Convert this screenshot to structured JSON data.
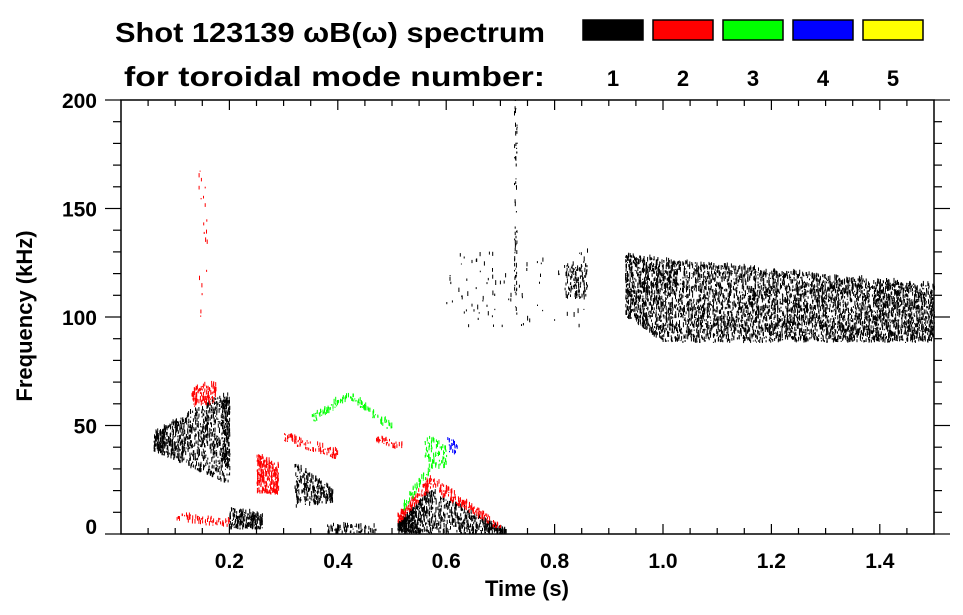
{
  "chart_data": {
    "type": "heatmap",
    "title": "Shot 123139 ωB(ω) spectrum",
    "subtitle": "for toroidal mode number:",
    "xlabel": "Time (s)",
    "ylabel": "Frequency (kHz)",
    "xlim": [
      0,
      1.5
    ],
    "ylim": [
      0,
      200
    ],
    "xticks": [
      0.2,
      0.4,
      0.6,
      0.8,
      1.0,
      1.2,
      1.4
    ],
    "xtick_labels": [
      "0.2",
      "0.4",
      "0.6",
      "0.8",
      "1.0",
      "1.2",
      "1.4"
    ],
    "yticks": [
      0,
      50,
      100,
      150,
      200
    ],
    "ytick_labels": [
      "0",
      "50",
      "100",
      "150",
      "200"
    ],
    "x_minor_step": 0.05,
    "y_minor_step": 10,
    "legend_position": "top-right",
    "legend": [
      {
        "mode": "1",
        "color": "#000000"
      },
      {
        "mode": "2",
        "color": "#ff0000"
      },
      {
        "mode": "3",
        "color": "#00ff00"
      },
      {
        "mode": "4",
        "color": "#0000ff"
      },
      {
        "mode": "5",
        "color": "#ffff00"
      }
    ],
    "features": [
      {
        "mode": 1,
        "t": [
          0.06,
          0.2
        ],
        "f0": [
          38,
          22
        ],
        "f1": [
          46,
          66
        ],
        "density": 900
      },
      {
        "mode": 1,
        "t": [
          0.185,
          0.2
        ],
        "f0": [
          30,
          30
        ],
        "f1": [
          62,
          62
        ],
        "density": 150
      },
      {
        "mode": 2,
        "t": [
          0.13,
          0.175
        ],
        "f0": [
          58,
          60
        ],
        "f1": [
          66,
          70
        ],
        "density": 120
      },
      {
        "mode": 2,
        "t": [
          0.1,
          0.2
        ],
        "f0": [
          5,
          3
        ],
        "f1": [
          9,
          6
        ],
        "density": 60
      },
      {
        "mode": 1,
        "t": [
          0.2,
          0.26
        ],
        "f0": [
          2,
          2
        ],
        "f1": [
          12,
          8
        ],
        "density": 220
      },
      {
        "mode": 2,
        "t": [
          0.25,
          0.29
        ],
        "f0": [
          18,
          18
        ],
        "f1": [
          36,
          32
        ],
        "density": 260
      },
      {
        "mode": 1,
        "t": [
          0.32,
          0.39
        ],
        "f0": [
          12,
          14
        ],
        "f1": [
          32,
          20
        ],
        "density": 260
      },
      {
        "mode": 2,
        "t": [
          0.3,
          0.4
        ],
        "f0": [
          42,
          34
        ],
        "f1": [
          46,
          38
        ],
        "density": 90
      },
      {
        "mode": 3,
        "t": [
          0.35,
          0.42
        ],
        "f0": [
          50,
          62
        ],
        "f1": [
          54,
          65
        ],
        "density": 60
      },
      {
        "mode": 3,
        "t": [
          0.42,
          0.5
        ],
        "f0": [
          62,
          46
        ],
        "f1": [
          65,
          50
        ],
        "density": 60
      },
      {
        "mode": 2,
        "t": [
          0.47,
          0.52
        ],
        "f0": [
          42,
          38
        ],
        "f1": [
          45,
          41
        ],
        "density": 40
      },
      {
        "mode": 1,
        "t": [
          0.38,
          0.47
        ],
        "f0": [
          0,
          0
        ],
        "f1": [
          4,
          3
        ],
        "density": 80
      },
      {
        "mode": 1,
        "t": [
          0.51,
          0.57
        ],
        "f0": [
          0,
          0
        ],
        "f1": [
          4,
          20
        ],
        "density": 380
      },
      {
        "mode": 1,
        "t": [
          0.57,
          0.71
        ],
        "f0": [
          0,
          0
        ],
        "f1": [
          20,
          1
        ],
        "density": 420
      },
      {
        "mode": 2,
        "t": [
          0.51,
          0.57
        ],
        "f0": [
          4,
          20
        ],
        "f1": [
          8,
          26
        ],
        "density": 120
      },
      {
        "mode": 2,
        "t": [
          0.57,
          0.7
        ],
        "f0": [
          20,
          1
        ],
        "f1": [
          26,
          4
        ],
        "density": 160
      },
      {
        "mode": 3,
        "t": [
          0.52,
          0.57
        ],
        "f0": [
          10,
          28
        ],
        "f1": [
          14,
          32
        ],
        "density": 50
      },
      {
        "mode": 3,
        "t": [
          0.56,
          0.6
        ],
        "f0": [
          30,
          30
        ],
        "f1": [
          45,
          40
        ],
        "density": 80
      },
      {
        "mode": 4,
        "t": [
          0.6,
          0.62
        ],
        "f0": [
          38,
          36
        ],
        "f1": [
          46,
          40
        ],
        "density": 20
      },
      {
        "mode": 1,
        "t": [
          0.6,
          0.86
        ],
        "f0": [
          95,
          95
        ],
        "f1": [
          130,
          130
        ],
        "density": 90
      },
      {
        "mode": 1,
        "t": [
          0.82,
          0.86
        ],
        "f0": [
          108,
          108
        ],
        "f1": [
          124,
          124
        ],
        "density": 120
      },
      {
        "mode": 1,
        "t": [
          0.725,
          0.73
        ],
        "f0": [
          100,
          100
        ],
        "f1": [
          200,
          200
        ],
        "density": 60
      },
      {
        "mode": 2,
        "t": [
          0.14,
          0.16
        ],
        "f0": [
          100,
          100
        ],
        "f1": [
          180,
          180
        ],
        "density": 20
      },
      {
        "mode": 1,
        "t": [
          0.93,
          1.0
        ],
        "f0": [
          100,
          88
        ],
        "f1": [
          128,
          126
        ],
        "density": 700
      },
      {
        "mode": 1,
        "t": [
          1.0,
          1.5
        ],
        "f0": [
          88,
          88
        ],
        "f1": [
          126,
          114
        ],
        "density": 4200
      }
    ]
  }
}
